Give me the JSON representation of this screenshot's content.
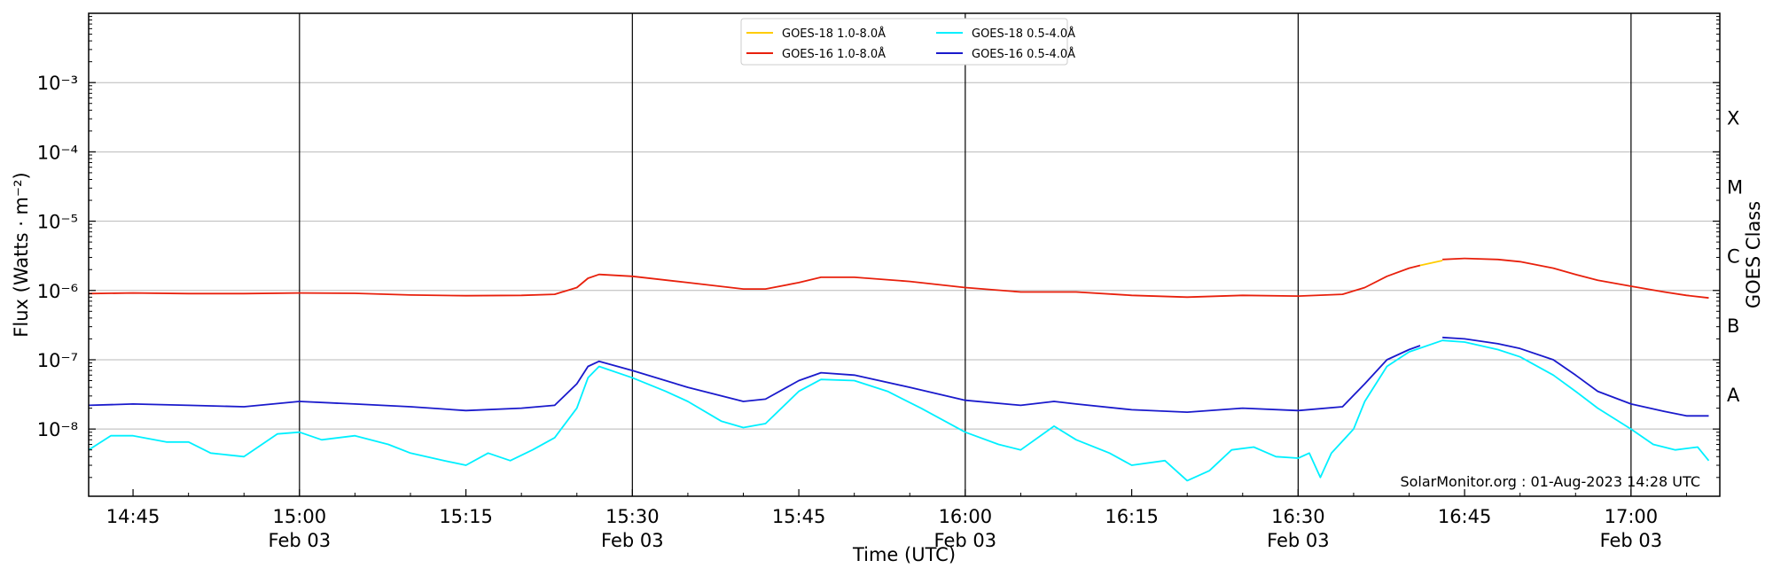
{
  "chart_data": {
    "type": "line",
    "xlabel": "Time (UTC)",
    "ylabel": "Flux (Watts · m⁻²)",
    "ylabel_right": "GOES Class",
    "credit": "SolarMonitor.org : 01-Aug-2023 14:28 UTC",
    "x_date_label": "Feb 03",
    "xlim": [
      "14:41",
      "17:08"
    ],
    "ylim_log10": [
      -8.97,
      -2.0
    ],
    "y_scale": "log",
    "grid": "horizontal at decades",
    "legend_position": "top-center",
    "x_ticks": [
      {
        "label": "14:45",
        "time": "14:45",
        "major": false
      },
      {
        "label": "15:00",
        "time": "15:00",
        "major": true
      },
      {
        "label": "15:15",
        "time": "15:15",
        "major": false
      },
      {
        "label": "15:30",
        "time": "15:30",
        "major": true
      },
      {
        "label": "15:45",
        "time": "15:45",
        "major": false
      },
      {
        "label": "16:00",
        "time": "16:00",
        "major": true
      },
      {
        "label": "16:15",
        "time": "16:15",
        "major": false
      },
      {
        "label": "16:30",
        "time": "16:30",
        "major": true
      },
      {
        "label": "16:45",
        "time": "16:45",
        "major": false
      },
      {
        "label": "17:00",
        "time": "17:00",
        "major": true
      }
    ],
    "y_ticks": [
      {
        "label": "10⁻³",
        "exp": -3
      },
      {
        "label": "10⁻⁴",
        "exp": -4
      },
      {
        "label": "10⁻⁵",
        "exp": -5
      },
      {
        "label": "10⁻⁶",
        "exp": -6
      },
      {
        "label": "10⁻⁷",
        "exp": -7
      },
      {
        "label": "10⁻⁸",
        "exp": -8
      }
    ],
    "class_labels": [
      {
        "label": "X",
        "exp": -3.5
      },
      {
        "label": "M",
        "exp": -4.5
      },
      {
        "label": "C",
        "exp": -5.5
      },
      {
        "label": "B",
        "exp": -6.5
      },
      {
        "label": "A",
        "exp": -7.5
      }
    ],
    "series": [
      {
        "name": "GOES-16 1.0-8.0Å",
        "color": "#e8200c",
        "points": [
          [
            "14:41",
            9e-07
          ],
          [
            "14:45",
            9.2e-07
          ],
          [
            "14:50",
            9e-07
          ],
          [
            "14:55",
            9e-07
          ],
          [
            "15:00",
            9.2e-07
          ],
          [
            "15:05",
            9.1e-07
          ],
          [
            "15:10",
            8.6e-07
          ],
          [
            "15:15",
            8.4e-07
          ],
          [
            "15:20",
            8.5e-07
          ],
          [
            "15:23",
            8.8e-07
          ],
          [
            "15:25",
            1.1e-06
          ],
          [
            "15:26",
            1.5e-06
          ],
          [
            "15:27",
            1.7e-06
          ],
          [
            "15:30",
            1.6e-06
          ],
          [
            "15:35",
            1.3e-06
          ],
          [
            "15:40",
            1.05e-06
          ],
          [
            "15:42",
            1.05e-06
          ],
          [
            "15:45",
            1.3e-06
          ],
          [
            "15:47",
            1.55e-06
          ],
          [
            "15:50",
            1.55e-06
          ],
          [
            "15:55",
            1.35e-06
          ],
          [
            "16:00",
            1.1e-06
          ],
          [
            "16:05",
            9.5e-07
          ],
          [
            "16:10",
            9.5e-07
          ],
          [
            "16:15",
            8.5e-07
          ],
          [
            "16:20",
            8e-07
          ],
          [
            "16:25",
            8.5e-07
          ],
          [
            "16:30",
            8.3e-07
          ],
          [
            "16:34",
            8.8e-07
          ],
          [
            "16:36",
            1.1e-06
          ],
          [
            "16:38",
            1.6e-06
          ],
          [
            "16:40",
            2.1e-06
          ],
          [
            "16:41",
            2.3e-06
          ]
        ]
      },
      {
        "name": "GOES-18 1.0-8.0Å",
        "color": "#ffcc00",
        "points": [
          [
            "16:41",
            2.3e-06
          ],
          [
            "16:43",
            2.7e-06
          ]
        ]
      },
      {
        "name": "GOES-16 1.0-8.0Å (cont)",
        "color": "#e8200c",
        "points": [
          [
            "16:43",
            2.8e-06
          ],
          [
            "16:45",
            2.9e-06
          ],
          [
            "16:48",
            2.8e-06
          ],
          [
            "16:50",
            2.6e-06
          ],
          [
            "16:53",
            2.1e-06
          ],
          [
            "16:55",
            1.7e-06
          ],
          [
            "16:57",
            1.4e-06
          ],
          [
            "17:00",
            1.15e-06
          ],
          [
            "17:03",
            9.5e-07
          ],
          [
            "17:05",
            8.5e-07
          ],
          [
            "17:07",
            7.8e-07
          ]
        ]
      },
      {
        "name": "GOES-16 0.5-4.0Å",
        "color": "#1a1acc",
        "points": [
          [
            "14:41",
            2.2e-08
          ],
          [
            "14:45",
            2.3e-08
          ],
          [
            "14:50",
            2.2e-08
          ],
          [
            "14:55",
            2.1e-08
          ],
          [
            "15:00",
            2.5e-08
          ],
          [
            "15:05",
            2.3e-08
          ],
          [
            "15:10",
            2.1e-08
          ],
          [
            "15:15",
            1.85e-08
          ],
          [
            "15:20",
            2e-08
          ],
          [
            "15:23",
            2.2e-08
          ],
          [
            "15:25",
            4.5e-08
          ],
          [
            "15:26",
            8e-08
          ],
          [
            "15:27",
            9.5e-08
          ],
          [
            "15:30",
            7e-08
          ],
          [
            "15:35",
            4e-08
          ],
          [
            "15:40",
            2.5e-08
          ],
          [
            "15:42",
            2.7e-08
          ],
          [
            "15:45",
            5e-08
          ],
          [
            "15:47",
            6.5e-08
          ],
          [
            "15:50",
            6e-08
          ],
          [
            "15:55",
            4e-08
          ],
          [
            "16:00",
            2.6e-08
          ],
          [
            "16:05",
            2.2e-08
          ],
          [
            "16:08",
            2.5e-08
          ],
          [
            "16:10",
            2.3e-08
          ],
          [
            "16:15",
            1.9e-08
          ],
          [
            "16:20",
            1.75e-08
          ],
          [
            "16:25",
            2e-08
          ],
          [
            "16:30",
            1.85e-08
          ],
          [
            "16:34",
            2.1e-08
          ],
          [
            "16:36",
            4.5e-08
          ],
          [
            "16:38",
            1e-07
          ],
          [
            "16:40",
            1.4e-07
          ],
          [
            "16:41",
            1.6e-07
          ]
        ]
      },
      {
        "name": "GOES-16 0.5-4.0Å (cont)",
        "color": "#1a1acc",
        "points": [
          [
            "16:43",
            2.1e-07
          ],
          [
            "16:45",
            2e-07
          ],
          [
            "16:48",
            1.7e-07
          ],
          [
            "16:50",
            1.45e-07
          ],
          [
            "16:53",
            1e-07
          ],
          [
            "16:55",
            6e-08
          ],
          [
            "16:57",
            3.5e-08
          ],
          [
            "17:00",
            2.3e-08
          ],
          [
            "17:03",
            1.8e-08
          ],
          [
            "17:05",
            1.55e-08
          ],
          [
            "17:07",
            1.55e-08
          ]
        ]
      },
      {
        "name": "GOES-18 0.5-4.0Å",
        "color": "#00f0ff",
        "points": [
          [
            "14:41",
            5e-09
          ],
          [
            "14:43",
            8e-09
          ],
          [
            "14:45",
            8e-09
          ],
          [
            "14:48",
            6.5e-09
          ],
          [
            "14:50",
            6.5e-09
          ],
          [
            "14:52",
            4.5e-09
          ],
          [
            "14:55",
            4e-09
          ],
          [
            "14:58",
            8.5e-09
          ],
          [
            "15:00",
            9e-09
          ],
          [
            "15:02",
            7e-09
          ],
          [
            "15:05",
            8e-09
          ],
          [
            "15:08",
            6e-09
          ],
          [
            "15:10",
            4.5e-09
          ],
          [
            "15:13",
            3.5e-09
          ],
          [
            "15:15",
            3e-09
          ],
          [
            "15:17",
            4.5e-09
          ],
          [
            "15:19",
            3.5e-09
          ],
          [
            "15:21",
            5e-09
          ],
          [
            "15:23",
            7.5e-09
          ],
          [
            "15:25",
            2e-08
          ],
          [
            "15:26",
            5.5e-08
          ],
          [
            "15:27",
            8e-08
          ],
          [
            "15:30",
            5.5e-08
          ],
          [
            "15:33",
            3.5e-08
          ],
          [
            "15:35",
            2.5e-08
          ],
          [
            "15:38",
            1.3e-08
          ],
          [
            "15:40",
            1.05e-08
          ],
          [
            "15:42",
            1.2e-08
          ],
          [
            "15:45",
            3.5e-08
          ],
          [
            "15:47",
            5.2e-08
          ],
          [
            "15:50",
            5e-08
          ],
          [
            "15:53",
            3.5e-08
          ],
          [
            "15:56",
            2e-08
          ],
          [
            "16:00",
            9e-09
          ],
          [
            "16:03",
            6e-09
          ],
          [
            "16:05",
            5e-09
          ],
          [
            "16:08",
            1.1e-08
          ],
          [
            "16:10",
            7e-09
          ],
          [
            "16:13",
            4.5e-09
          ],
          [
            "16:15",
            3e-09
          ],
          [
            "16:18",
            3.5e-09
          ],
          [
            "16:20",
            1.8e-09
          ],
          [
            "16:22",
            2.5e-09
          ],
          [
            "16:24",
            5e-09
          ],
          [
            "16:26",
            5.5e-09
          ],
          [
            "16:28",
            4e-09
          ],
          [
            "16:30",
            3.8e-09
          ],
          [
            "16:31",
            4.5e-09
          ],
          [
            "16:32",
            2e-09
          ],
          [
            "16:33",
            4.5e-09
          ],
          [
            "16:35",
            1e-08
          ],
          [
            "16:36",
            2.5e-08
          ],
          [
            "16:38",
            8e-08
          ],
          [
            "16:40",
            1.3e-07
          ],
          [
            "16:43",
            1.9e-07
          ],
          [
            "16:45",
            1.8e-07
          ],
          [
            "16:48",
            1.4e-07
          ],
          [
            "16:50",
            1.1e-07
          ],
          [
            "16:53",
            6e-08
          ],
          [
            "16:55",
            3.5e-08
          ],
          [
            "16:57",
            2e-08
          ],
          [
            "17:00",
            1e-08
          ],
          [
            "17:02",
            6e-09
          ],
          [
            "17:04",
            5e-09
          ],
          [
            "17:06",
            5.5e-09
          ],
          [
            "17:07",
            3.5e-09
          ]
        ]
      }
    ],
    "legend": [
      {
        "label": "GOES-18 1.0-8.0Å",
        "color": "#ffcc00"
      },
      {
        "label": "GOES-16 1.0-8.0Å",
        "color": "#e8200c"
      },
      {
        "label": "GOES-18 0.5-4.0Å",
        "color": "#00f0ff"
      },
      {
        "label": "GOES-16 0.5-4.0Å",
        "color": "#1a1acc"
      }
    ]
  }
}
